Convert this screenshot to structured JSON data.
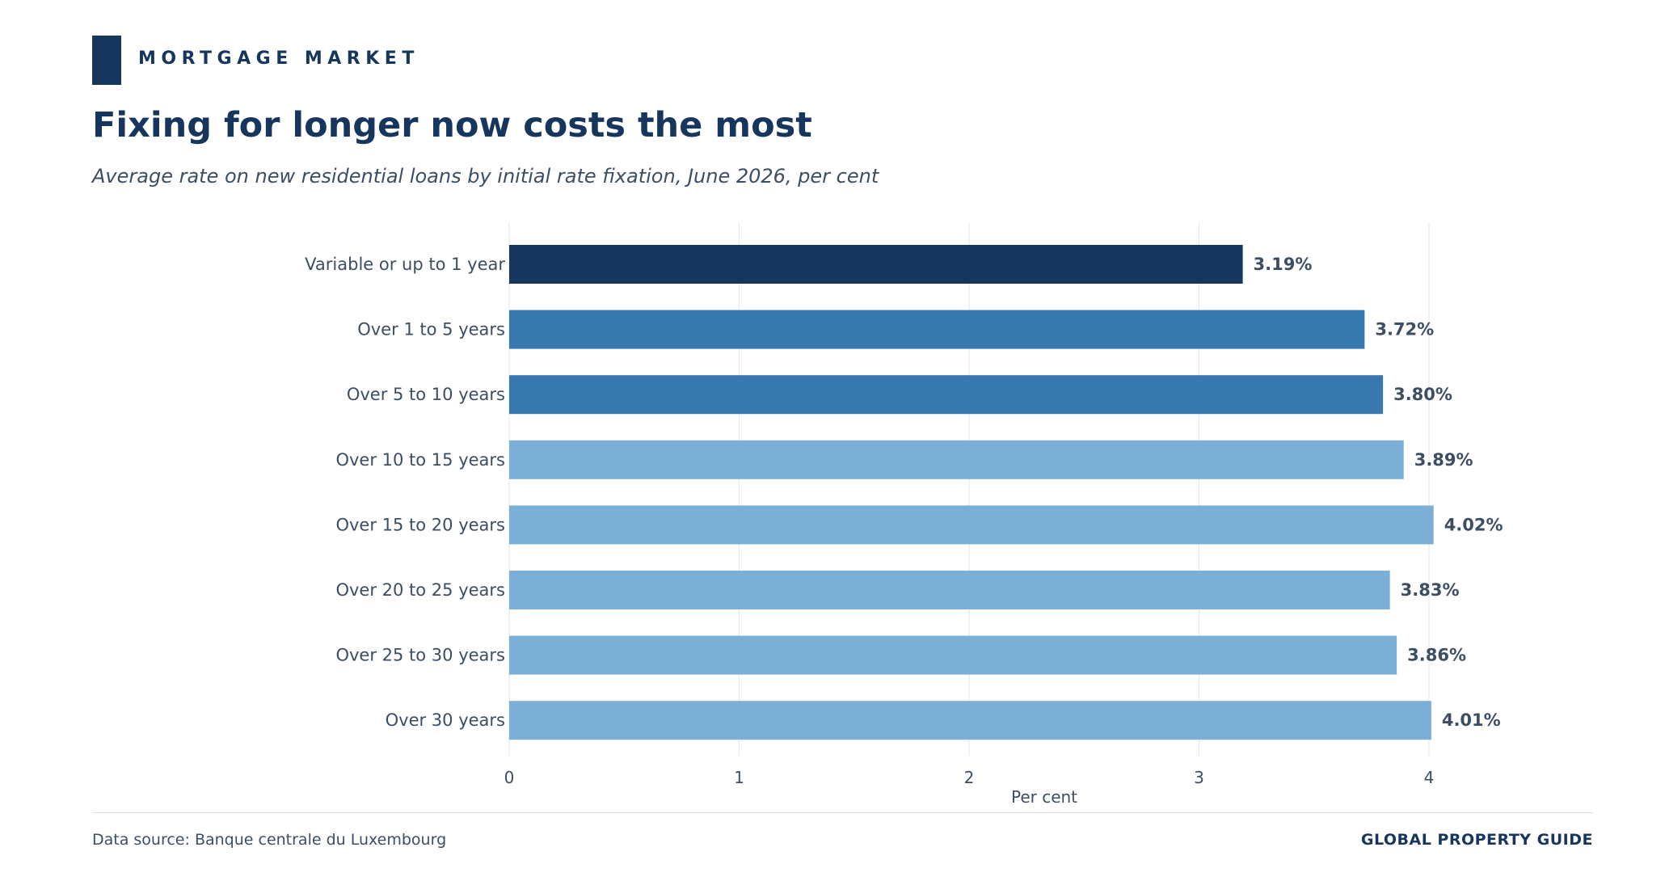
{
  "header": {
    "kicker": "MORTGAGE MARKET",
    "title": "Fixing for longer now costs the most",
    "subtitle": "Average rate on new residential loans by initial rate fixation, June 2026, per cent"
  },
  "footer": {
    "source": "Data source: Banque centrale du Luxembourg",
    "publisher": "GLOBAL PROPERTY GUIDE"
  },
  "colors": {
    "highlight": "#17365d",
    "medium": "#3778ae",
    "light": "#7bafd5",
    "text": "#3c4e63",
    "grid": "#e6e9ed"
  },
  "chart_data": {
    "type": "bar",
    "orientation": "horizontal",
    "categories": [
      "Variable or up to 1 year",
      "Over 1 to 5 years",
      "Over 5 to 10 years",
      "Over 10 to 15 years",
      "Over 15 to 20 years",
      "Over 20 to 25 years",
      "Over 25 to 30 years",
      "Over 30 years"
    ],
    "values": [
      3.19,
      3.72,
      3.8,
      3.89,
      4.02,
      3.83,
      3.86,
      4.01
    ],
    "value_labels": [
      "3.19%",
      "3.72%",
      "3.80%",
      "3.89%",
      "4.02%",
      "3.83%",
      "3.86%",
      "4.01%"
    ],
    "bar_color_groups": [
      "highlight",
      "medium",
      "medium",
      "light",
      "light",
      "light",
      "light",
      "light"
    ],
    "xlabel": "Per cent",
    "xticks": [
      0,
      1,
      2,
      3,
      4
    ],
    "xlim": [
      0,
      4.6
    ],
    "grid": "vertical"
  }
}
